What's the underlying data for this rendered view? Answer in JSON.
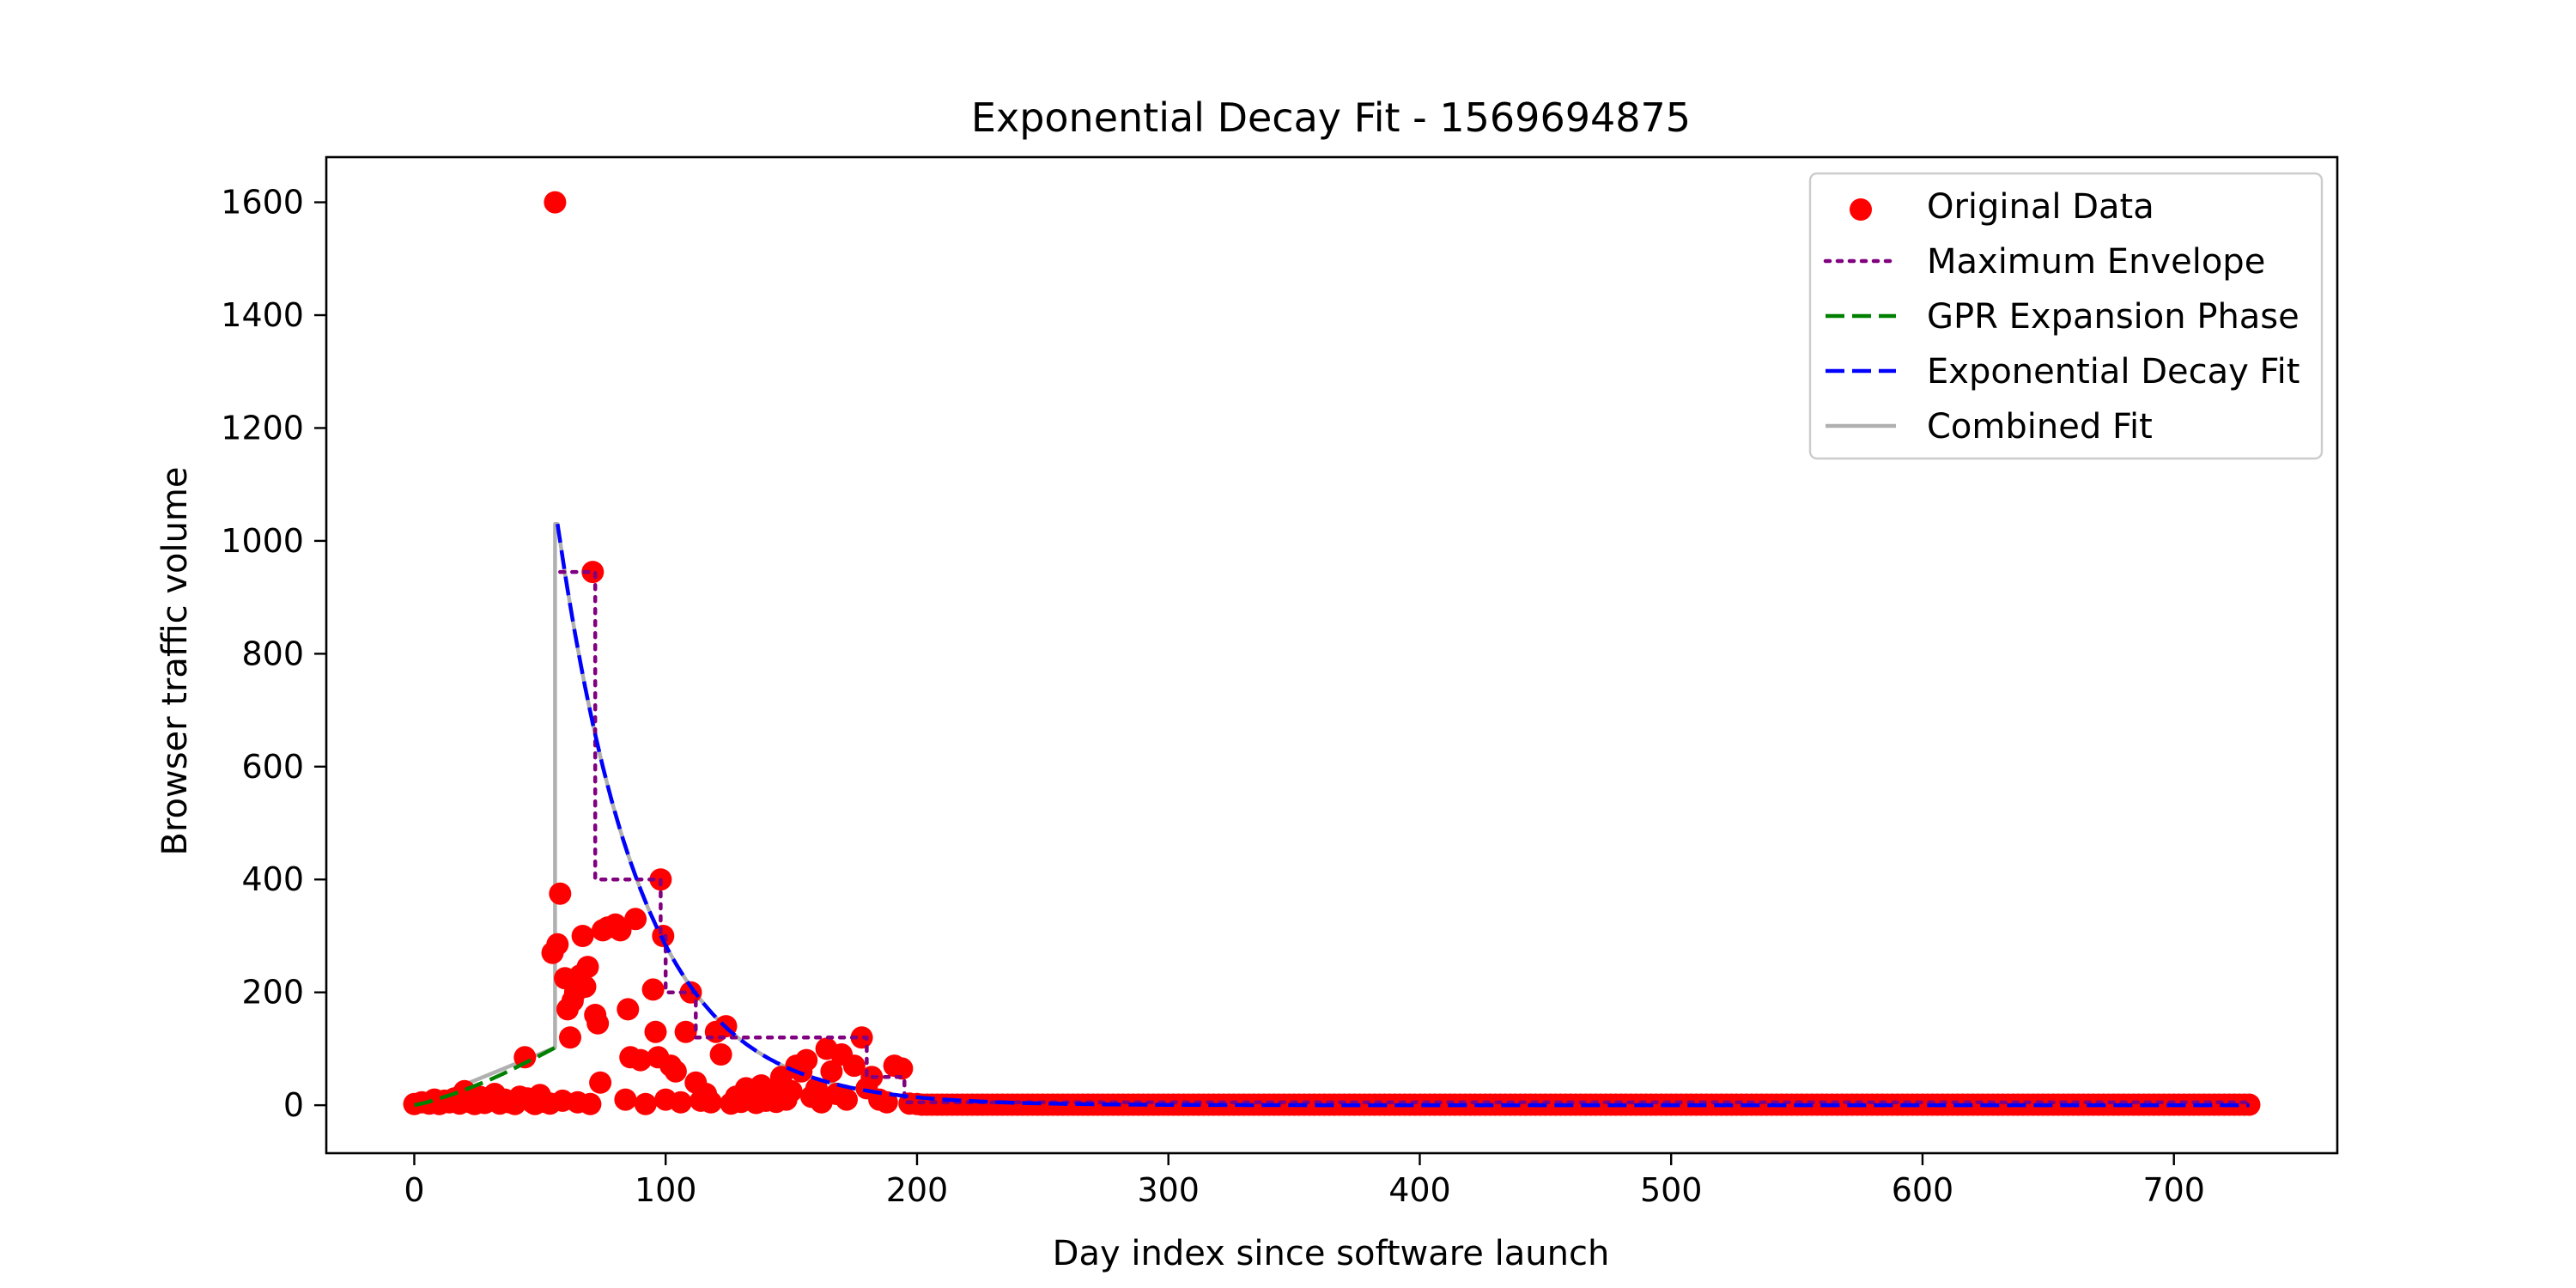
{
  "chart_data": {
    "type": "scatter",
    "title": "Exponential Decay Fit - 1569694875",
    "xlabel": "Day index since software launch",
    "ylabel": "Browser traffic volume",
    "xlim": [
      -35,
      765
    ],
    "ylim": [
      -85,
      1680
    ],
    "xticks": [
      0,
      100,
      200,
      300,
      400,
      500,
      600,
      700
    ],
    "yticks": [
      0,
      200,
      400,
      600,
      800,
      1000,
      1200,
      1400,
      1600
    ],
    "grid": false,
    "legend_position": "top-right",
    "legend": [
      {
        "label": "Original Data",
        "style": "marker",
        "color": "#ff0000"
      },
      {
        "label": "Maximum Envelope",
        "style": "dotted",
        "color": "#800080"
      },
      {
        "label": "GPR Expansion Phase",
        "style": "dashed",
        "color": "#008000"
      },
      {
        "label": "Exponential Decay Fit",
        "style": "dashed",
        "color": "#0000ff"
      },
      {
        "label": "Combined Fit",
        "style": "solid",
        "color": "#b0b0b0"
      }
    ],
    "series": [
      {
        "name": "Original Data",
        "kind": "scatter",
        "color": "#ff0000",
        "points": [
          [
            0,
            2
          ],
          [
            3,
            5
          ],
          [
            6,
            3
          ],
          [
            8,
            10
          ],
          [
            10,
            2
          ],
          [
            12,
            8
          ],
          [
            14,
            5
          ],
          [
            16,
            12
          ],
          [
            18,
            3
          ],
          [
            20,
            25
          ],
          [
            22,
            6
          ],
          [
            24,
            2
          ],
          [
            26,
            15
          ],
          [
            28,
            4
          ],
          [
            30,
            8
          ],
          [
            32,
            20
          ],
          [
            34,
            3
          ],
          [
            36,
            10
          ],
          [
            38,
            5
          ],
          [
            40,
            2
          ],
          [
            42,
            15
          ],
          [
            44,
            85
          ],
          [
            45,
            12
          ],
          [
            47,
            5
          ],
          [
            48,
            2
          ],
          [
            50,
            18
          ],
          [
            52,
            6
          ],
          [
            54,
            3
          ],
          [
            55,
            270
          ],
          [
            56,
            1600
          ],
          [
            57,
            285
          ],
          [
            58,
            375
          ],
          [
            59,
            8
          ],
          [
            60,
            225
          ],
          [
            61,
            170
          ],
          [
            62,
            120
          ],
          [
            63,
            185
          ],
          [
            64,
            200
          ],
          [
            65,
            5
          ],
          [
            66,
            230
          ],
          [
            67,
            300
          ],
          [
            68,
            210
          ],
          [
            69,
            245
          ],
          [
            70,
            2
          ],
          [
            71,
            945
          ],
          [
            72,
            160
          ],
          [
            73,
            145
          ],
          [
            74,
            40
          ],
          [
            75,
            310
          ],
          [
            77,
            315
          ],
          [
            80,
            320
          ],
          [
            82,
            310
          ],
          [
            84,
            10
          ],
          [
            85,
            170
          ],
          [
            86,
            85
          ],
          [
            88,
            330
          ],
          [
            90,
            80
          ],
          [
            92,
            2
          ],
          [
            95,
            205
          ],
          [
            96,
            130
          ],
          [
            97,
            85
          ],
          [
            98,
            400
          ],
          [
            99,
            300
          ],
          [
            100,
            10
          ],
          [
            102,
            70
          ],
          [
            104,
            60
          ],
          [
            106,
            5
          ],
          [
            108,
            130
          ],
          [
            110,
            200
          ],
          [
            112,
            40
          ],
          [
            114,
            8
          ],
          [
            116,
            20
          ],
          [
            118,
            5
          ],
          [
            120,
            130
          ],
          [
            122,
            90
          ],
          [
            124,
            140
          ],
          [
            126,
            3
          ],
          [
            128,
            15
          ],
          [
            130,
            6
          ],
          [
            132,
            30
          ],
          [
            134,
            10
          ],
          [
            136,
            4
          ],
          [
            138,
            35
          ],
          [
            140,
            8
          ],
          [
            142,
            20
          ],
          [
            144,
            6
          ],
          [
            146,
            50
          ],
          [
            148,
            10
          ],
          [
            150,
            25
          ],
          [
            152,
            70
          ],
          [
            154,
            60
          ],
          [
            156,
            80
          ],
          [
            158,
            15
          ],
          [
            160,
            30
          ],
          [
            162,
            5
          ],
          [
            164,
            100
          ],
          [
            166,
            60
          ],
          [
            168,
            20
          ],
          [
            170,
            90
          ],
          [
            172,
            10
          ],
          [
            175,
            70
          ],
          [
            178,
            120
          ],
          [
            180,
            30
          ],
          [
            182,
            50
          ],
          [
            185,
            10
          ],
          [
            188,
            5
          ],
          [
            191,
            70
          ],
          [
            194,
            65
          ],
          [
            197,
            3
          ],
          [
            200,
            2
          ]
        ],
        "tail_constant": {
          "from": 200,
          "to": 730,
          "step": 2,
          "value": 1
        }
      },
      {
        "name": "Maximum Envelope",
        "kind": "step",
        "color": "#800080",
        "points": [
          [
            58,
            945
          ],
          [
            72,
            945
          ],
          [
            72,
            400
          ],
          [
            92,
            400
          ],
          [
            98,
            400
          ],
          [
            98,
            300
          ],
          [
            100,
            300
          ],
          [
            100,
            200
          ],
          [
            112,
            200
          ],
          [
            112,
            120
          ],
          [
            180,
            120
          ],
          [
            180,
            50
          ],
          [
            195,
            50
          ],
          [
            195,
            5
          ],
          [
            730,
            5
          ]
        ]
      },
      {
        "name": "GPR Expansion Phase",
        "kind": "line",
        "color": "#008000",
        "points": [
          [
            0,
            0
          ],
          [
            5,
            5
          ],
          [
            10,
            12
          ],
          [
            15,
            19
          ],
          [
            20,
            27
          ],
          [
            25,
            36
          ],
          [
            30,
            45
          ],
          [
            35,
            55
          ],
          [
            40,
            66
          ],
          [
            45,
            77
          ],
          [
            50,
            88
          ],
          [
            56,
            102
          ]
        ]
      },
      {
        "name": "Exponential Decay Fit",
        "kind": "exp_decay",
        "color": "#0000ff",
        "x_start": 57,
        "x_end": 730,
        "y0": 1030,
        "rate": 0.03
      },
      {
        "name": "Combined Fit",
        "kind": "line",
        "color": "#b0b0b0",
        "points": [
          [
            0,
            0
          ],
          [
            56,
            102
          ],
          [
            56,
            1030
          ]
        ]
      }
    ]
  }
}
